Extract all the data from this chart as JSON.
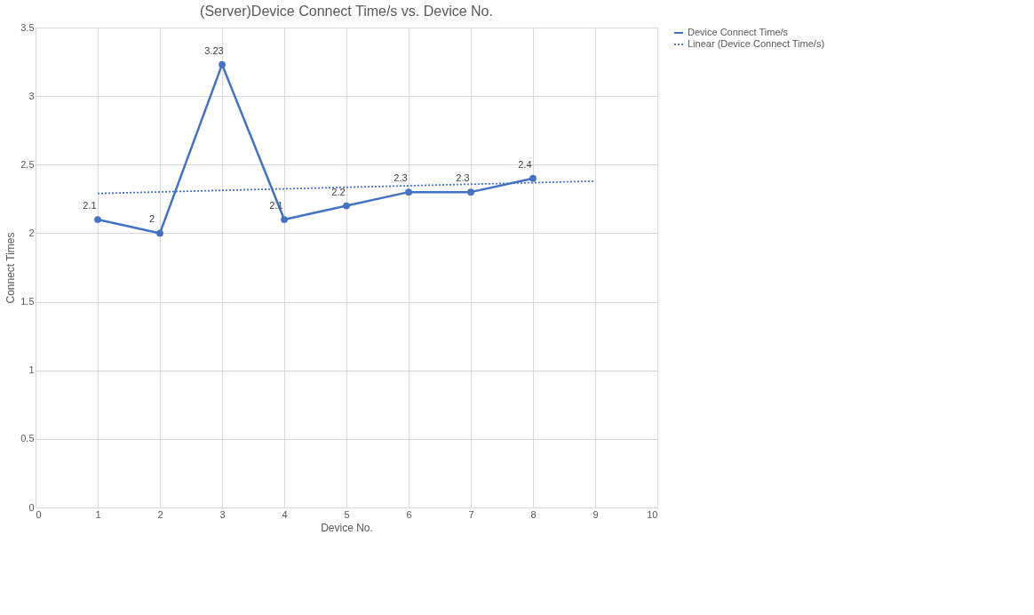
{
  "chart_data": {
    "type": "line",
    "title": "(Server)Device Connect Time/s vs. Device No.",
    "xlabel": "Device No.",
    "ylabel": "Connect Times",
    "x": [
      1,
      2,
      3,
      4,
      5,
      6,
      7,
      8
    ],
    "series": [
      {
        "name": "Device Connect Time/s",
        "color": "#4472c4",
        "values": [
          2.1,
          2,
          3.23,
          2.1,
          2.2,
          2.3,
          2.3,
          2.4
        ],
        "marker": "circle",
        "line_style": "solid",
        "data_labels": true
      },
      {
        "name": "Linear (Device Connect Time/s)",
        "type": "line",
        "color": "#4472c4",
        "x": [
          1,
          9
        ],
        "values": [
          2.29,
          2.38
        ],
        "marker": "none",
        "line_style": "dotted"
      }
    ],
    "xlim": [
      0,
      10
    ],
    "xticks": [
      0,
      1,
      2,
      3,
      4,
      5,
      6,
      7,
      8,
      9,
      10
    ],
    "ylim": [
      0,
      3.5
    ],
    "yticks": [
      0,
      0.5,
      1,
      1.5,
      2,
      2.5,
      3,
      3.5
    ],
    "grid": true,
    "legend": "right"
  }
}
